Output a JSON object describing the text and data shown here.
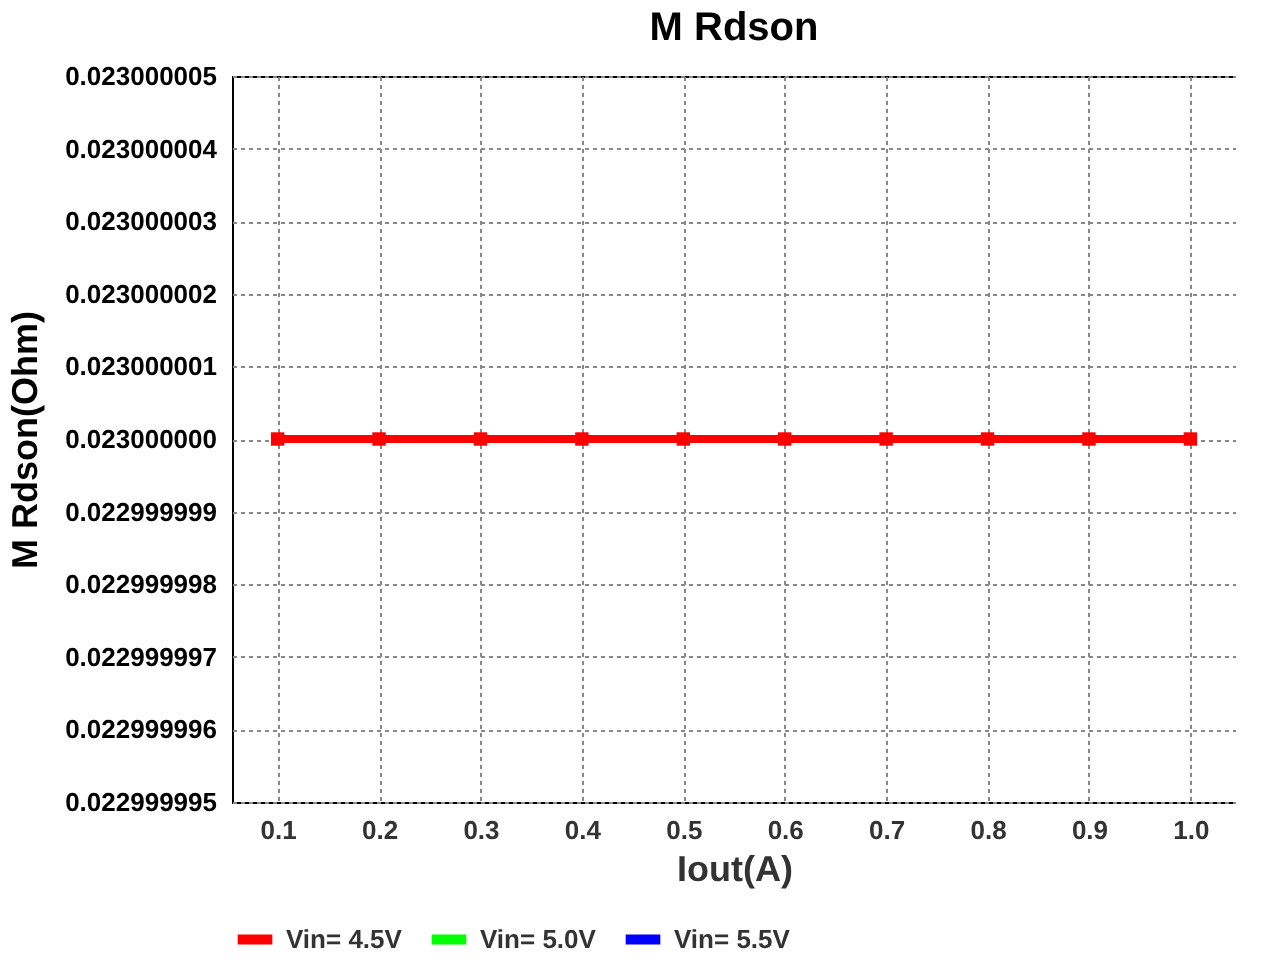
{
  "chart_data": {
    "type": "line",
    "title": "M Rdson",
    "xlabel": "Iout(A)",
    "ylabel": "M Rdson(Ohm)",
    "categories": [
      "0.1",
      "0.2",
      "0.3",
      "0.4",
      "0.5",
      "0.6",
      "0.7",
      "0.8",
      "0.9",
      "1.0"
    ],
    "series": [
      {
        "name": "Vin= 4.5V",
        "color": "#ff0000",
        "values": [
          0.023,
          0.023,
          0.023,
          0.023,
          0.023,
          0.023,
          0.023,
          0.023,
          0.023,
          0.023
        ]
      },
      {
        "name": "Vin= 5.0V",
        "color": "#00ff00",
        "values": [
          null,
          null,
          null,
          null,
          null,
          null,
          null,
          null,
          null,
          null
        ]
      },
      {
        "name": "Vin= 5.5V",
        "color": "#0000ff",
        "values": [
          null,
          null,
          null,
          null,
          null,
          null,
          null,
          null,
          null,
          null
        ]
      }
    ],
    "ylim": [
      0.022999995,
      0.023000005
    ],
    "yticks": [
      {
        "value": 0.022999995,
        "label": "0.022999995"
      },
      {
        "value": 0.022999996,
        "label": "0.022999996"
      },
      {
        "value": 0.022999997,
        "label": "0.022999997"
      },
      {
        "value": 0.022999998,
        "label": "0.022999998"
      },
      {
        "value": 0.022999999,
        "label": "0.022999999"
      },
      {
        "value": 0.023,
        "label": "0.023000000"
      },
      {
        "value": 0.023000001,
        "label": "0.023000001"
      },
      {
        "value": 0.023000002,
        "label": "0.023000002"
      },
      {
        "value": 0.023000003,
        "label": "0.023000003"
      },
      {
        "value": 0.023000004,
        "label": "0.023000004"
      },
      {
        "value": 0.023000005,
        "label": "0.023000005"
      }
    ],
    "grid": true,
    "legend": "bottom",
    "marker": "square",
    "line_style": "solid"
  }
}
